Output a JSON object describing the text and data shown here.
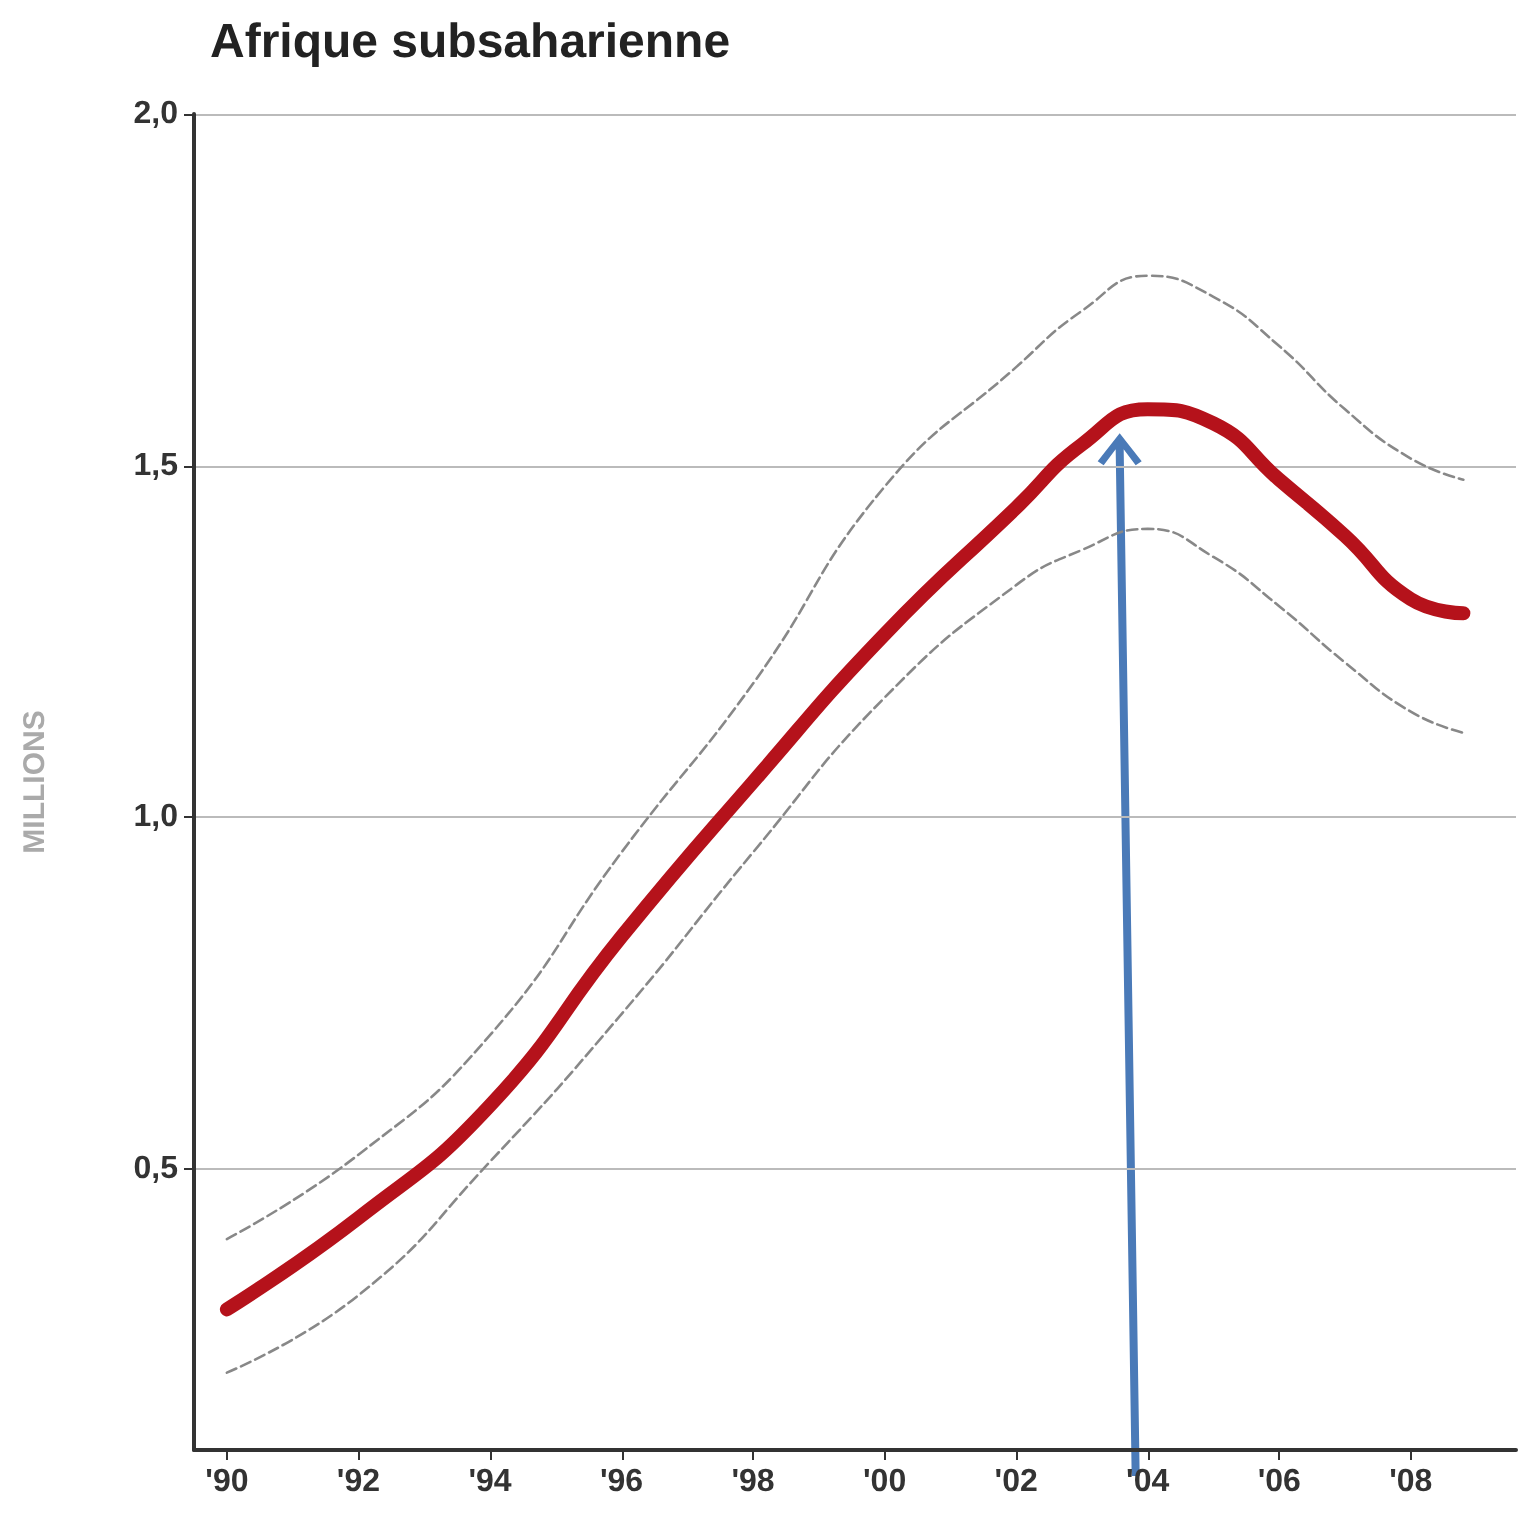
{
  "chart_data": {
    "type": "line",
    "title": "Afrique subsaharienne",
    "ylabel": "MILLIONS",
    "xlim": [
      1989.5,
      2009.6
    ],
    "ylim": [
      0.1,
      2.0
    ],
    "xticks": [
      {
        "value": 1990,
        "label": "'90"
      },
      {
        "value": 1992,
        "label": "'92"
      },
      {
        "value": 1994,
        "label": "'94"
      },
      {
        "value": 1996,
        "label": "'96"
      },
      {
        "value": 1998,
        "label": "'98"
      },
      {
        "value": 2000,
        "label": "'00"
      },
      {
        "value": 2002,
        "label": "'02"
      },
      {
        "value": 2004,
        "label": "'04"
      },
      {
        "value": 2006,
        "label": "'06"
      },
      {
        "value": 2008,
        "label": "'08"
      }
    ],
    "yticks": [
      {
        "value": 0.5,
        "label": "0,5"
      },
      {
        "value": 1.0,
        "label": "1,0"
      },
      {
        "value": 1.5,
        "label": "1,5"
      },
      {
        "value": 2.0,
        "label": "2,0"
      }
    ],
    "grid": "y",
    "marker": "none",
    "line_style": "solid",
    "series": [
      {
        "color": "#888888",
        "line_style": "dashed",
        "x": [
          1990,
          1992,
          1994,
          1996,
          1998,
          2000,
          2002,
          2003,
          2004,
          2005,
          2006,
          2007,
          2008,
          2008.8
        ],
        "values": [
          0.4,
          0.52,
          0.69,
          0.95,
          1.19,
          1.47,
          1.64,
          1.72,
          1.77,
          1.74,
          1.67,
          1.58,
          1.51,
          1.48
        ]
      },
      {
        "color": "#888888",
        "line_style": "dashed",
        "x": [
          1990,
          1992,
          1994,
          1996,
          1998,
          2000,
          2002,
          2003,
          2004,
          2005,
          2006,
          2007,
          2008,
          2008.8
        ],
        "values": [
          0.21,
          0.32,
          0.51,
          0.72,
          0.95,
          1.17,
          1.33,
          1.38,
          1.41,
          1.37,
          1.3,
          1.22,
          1.15,
          1.12
        ]
      },
      {
        "color": "#b5121b",
        "x": [
          1990,
          1992,
          1994,
          1996,
          1998,
          2000,
          2002,
          2003,
          2004,
          2005,
          2006,
          2007,
          2008,
          2008.8
        ],
        "values": [
          0.3,
          0.43,
          0.59,
          0.83,
          1.05,
          1.26,
          1.44,
          1.53,
          1.58,
          1.56,
          1.48,
          1.4,
          1.31,
          1.29
        ]
      }
    ]
  }
}
